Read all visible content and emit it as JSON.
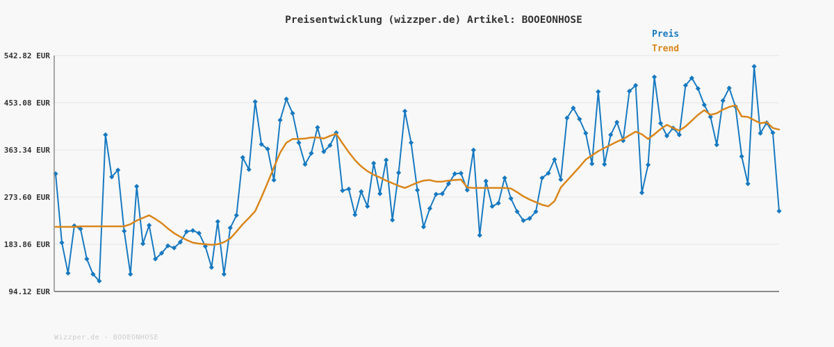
{
  "page": {
    "background": "#f8f8f8"
  },
  "header": {
    "title": "Preisentwicklung (wizzper.de) Artikel: BOOEONHOSE"
  },
  "legend": [
    {
      "label": "Preis",
      "color": "#1779c0"
    },
    {
      "label": "Trend",
      "color": "#d9861a"
    }
  ],
  "footer": {
    "text": "Wizzper.de - BOOEONHOSE"
  },
  "colors": {
    "price_line": "#1779c0",
    "trend_line": "#d9861a",
    "grid": "#e5e5e5",
    "axis": "#8a8a8a",
    "title_text": "#333333",
    "tick_text": "#333333",
    "watermark_text": "#cccccc",
    "background": "#f8f8f8"
  },
  "chart_data": {
    "type": "line",
    "title": "Preisentwicklung (wizzper.de) Artikel: BOOEONHOSE",
    "unit": "EUR",
    "grid": "horizontal",
    "legend_position": "top-right",
    "x_axis": {
      "tick_labels_visible": false,
      "num_points": 117
    },
    "ylim": [
      94.12,
      542.82
    ],
    "y_ticks": [
      {
        "label": "542.82 EUR",
        "value": 542.82
      },
      {
        "label": "453.08 EUR",
        "value": 453.08
      },
      {
        "label": "363.34 EUR",
        "value": 363.34
      },
      {
        "label": "273.60 EUR",
        "value": 273.6
      },
      {
        "label": "183.86 EUR",
        "value": 183.86
      },
      {
        "label": "94.12 EUR",
        "value": 94.12
      }
    ],
    "series": [
      {
        "name": "Preis",
        "color": "#1779c0",
        "marker": "diamond",
        "line_width": 2,
        "values": [
          318,
          187,
          129,
          219,
          213,
          156,
          127,
          114,
          392,
          312,
          325,
          209,
          127,
          294,
          185,
          220,
          156,
          167,
          181,
          177,
          188,
          208,
          210,
          205,
          180,
          140,
          227,
          127,
          215,
          239,
          349,
          326,
          455,
          374,
          365,
          306,
          420,
          460,
          433,
          377,
          336,
          357,
          406,
          360,
          372,
          396,
          286,
          289,
          240,
          284,
          256,
          338,
          280,
          344,
          230,
          320,
          437,
          377,
          287,
          217,
          252,
          279,
          280,
          299,
          318,
          319,
          287,
          363,
          201,
          304,
          256,
          262,
          310,
          271,
          246,
          229,
          233,
          246,
          310,
          319,
          345,
          307,
          424,
          443,
          422,
          395,
          337,
          474,
          336,
          392,
          416,
          381,
          475,
          486,
          282,
          335,
          502,
          414,
          390,
          405,
          392,
          486,
          500,
          480,
          449,
          426,
          373,
          457,
          481,
          446,
          351,
          299,
          522,
          395,
          415,
          396,
          247
        ]
      },
      {
        "name": "Trend",
        "color": "#d9861a",
        "marker": "none",
        "line_width": 2.5,
        "values": [
          217,
          217,
          217,
          217,
          218,
          218,
          218,
          218,
          218,
          218,
          218,
          218,
          222,
          229,
          234,
          239,
          232,
          224,
          214,
          205,
          198,
          192,
          187,
          185,
          184,
          183,
          184,
          188,
          195,
          208,
          222,
          234,
          247,
          273,
          301,
          330,
          358,
          377,
          384,
          384,
          385,
          387,
          387,
          385,
          390,
          394,
          376,
          359,
          344,
          332,
          323,
          316,
          311,
          305,
          300,
          295,
          291,
          296,
          301,
          305,
          306,
          303,
          303,
          305,
          306,
          307,
          292,
          291,
          291,
          291,
          291,
          291,
          291,
          290,
          283,
          275,
          269,
          264,
          259,
          256,
          266,
          292,
          305,
          318,
          331,
          345,
          353,
          361,
          367,
          373,
          379,
          384,
          391,
          398,
          393,
          384,
          393,
          403,
          411,
          405,
          400,
          408,
          419,
          430,
          439,
          430,
          433,
          440,
          445,
          448,
          427,
          426,
          420,
          414,
          416,
          405,
          402
        ]
      }
    ]
  }
}
